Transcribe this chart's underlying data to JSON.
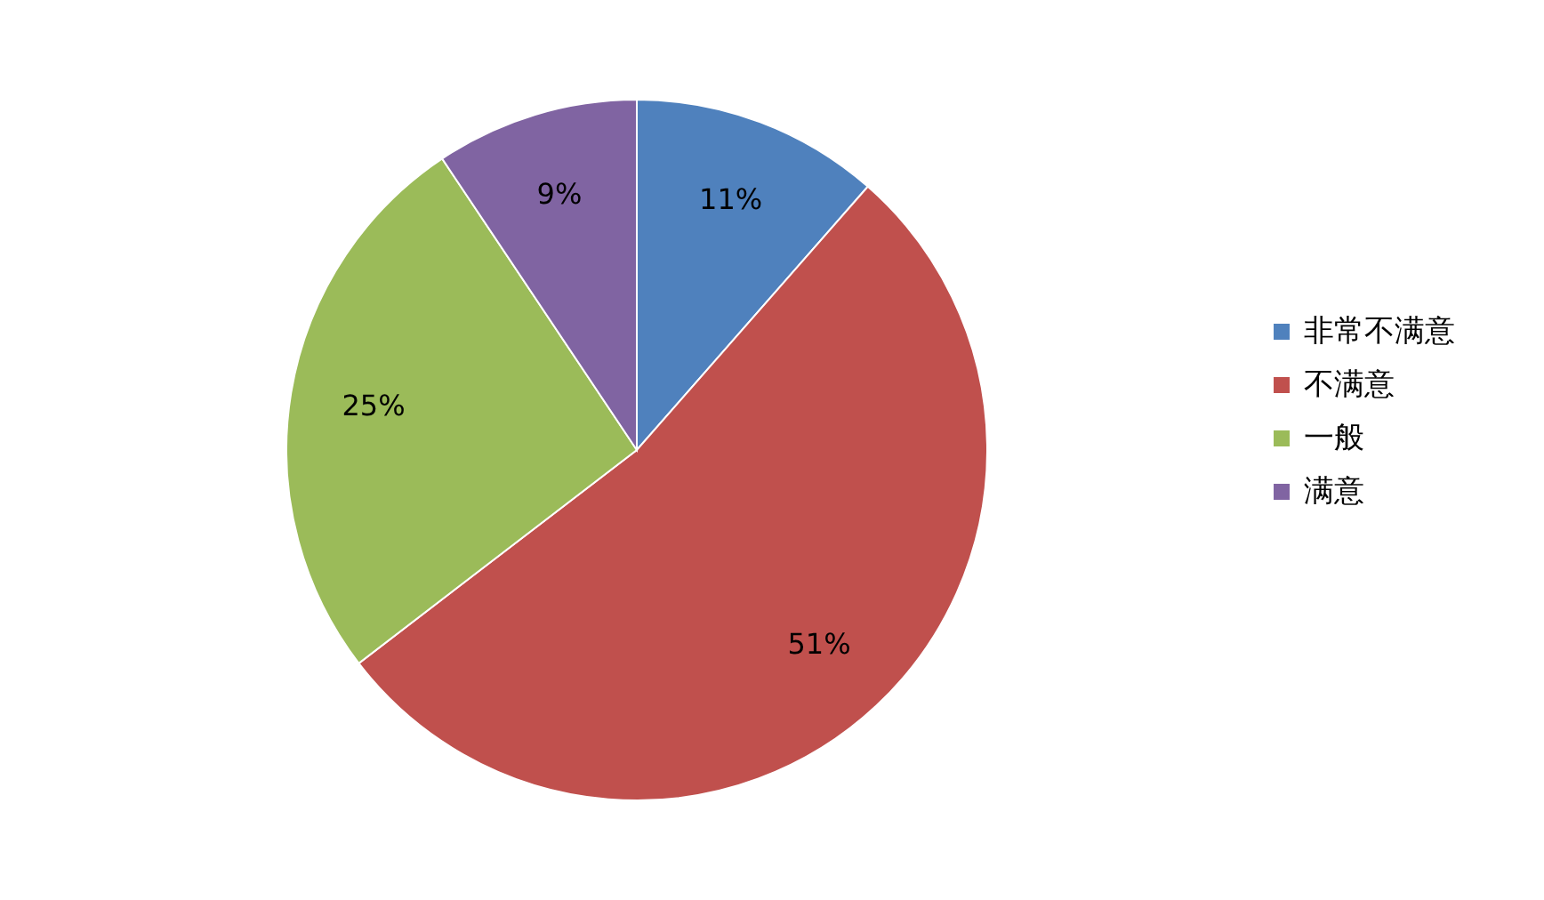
{
  "chart_data": {
    "type": "pie",
    "categories": [
      "非常不满意",
      "不满意",
      "一般",
      "满意"
    ],
    "values": [
      11,
      51,
      25,
      9
    ],
    "colors": [
      "#4f81bd",
      "#c0504d",
      "#9bbb59",
      "#8064a2"
    ],
    "value_labels": [
      "11%",
      "51%",
      "25%",
      "9%"
    ],
    "legend": "right"
  }
}
